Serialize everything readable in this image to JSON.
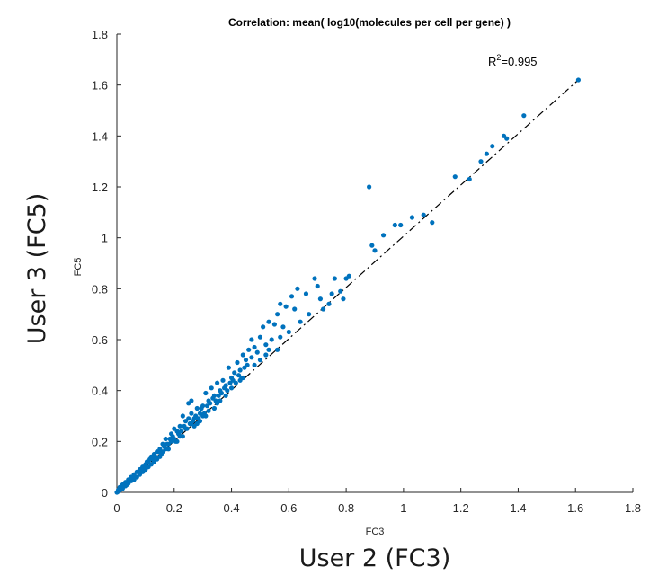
{
  "chart_data": {
    "type": "scatter",
    "title": "Correlation: mean( log10(molecules per cell per gene) )",
    "xlabel": "FC3",
    "ylabel": "FC5",
    "outer_xlabel": "User 2 (FC3)",
    "outer_ylabel": "User 3 (FC5)",
    "xlim": [
      0,
      1.8
    ],
    "ylim": [
      0,
      1.8
    ],
    "xticks": [
      "0",
      "0.2",
      "0.4",
      "0.6",
      "0.8",
      "1",
      "1.2",
      "1.4",
      "1.6",
      "1.8"
    ],
    "yticks": [
      "0",
      "0.2",
      "0.4",
      "0.6",
      "0.8",
      "1",
      "1.2",
      "1.4",
      "1.6",
      "1.8"
    ],
    "annotation": {
      "base": "R",
      "superscript": "2",
      "value": "=0.995"
    },
    "fit_line": {
      "x": [
        0,
        1.61
      ],
      "y": [
        0,
        1.62
      ],
      "style": "dash-dot",
      "color": "#000000"
    },
    "marker_color": "#0072BD",
    "points": [
      [
        1.61,
        1.62
      ],
      [
        1.42,
        1.48
      ],
      [
        1.36,
        1.39
      ],
      [
        1.35,
        1.4
      ],
      [
        1.31,
        1.36
      ],
      [
        1.29,
        1.33
      ],
      [
        1.27,
        1.3
      ],
      [
        1.23,
        1.23
      ],
      [
        1.18,
        1.24
      ],
      [
        1.1,
        1.06
      ],
      [
        1.07,
        1.09
      ],
      [
        1.03,
        1.08
      ],
      [
        0.99,
        1.05
      ],
      [
        0.97,
        1.05
      ],
      [
        0.93,
        1.01
      ],
      [
        0.89,
        0.97
      ],
      [
        0.9,
        0.95
      ],
      [
        0.88,
        1.2
      ],
      [
        0.8,
        0.84
      ],
      [
        0.81,
        0.85
      ],
      [
        0.76,
        0.84
      ],
      [
        0.78,
        0.79
      ],
      [
        0.79,
        0.76
      ],
      [
        0.75,
        0.78
      ],
      [
        0.74,
        0.74
      ],
      [
        0.72,
        0.72
      ],
      [
        0.71,
        0.76
      ],
      [
        0.69,
        0.84
      ],
      [
        0.7,
        0.81
      ],
      [
        0.66,
        0.78
      ],
      [
        0.63,
        0.8
      ],
      [
        0.61,
        0.77
      ],
      [
        0.62,
        0.72
      ],
      [
        0.59,
        0.73
      ],
      [
        0.57,
        0.74
      ],
      [
        0.56,
        0.7
      ],
      [
        0.55,
        0.66
      ],
      [
        0.53,
        0.67
      ],
      [
        0.51,
        0.65
      ],
      [
        0.54,
        0.6
      ],
      [
        0.58,
        0.65
      ],
      [
        0.57,
        0.61
      ],
      [
        0.56,
        0.56
      ],
      [
        0.52,
        0.58
      ],
      [
        0.5,
        0.61
      ],
      [
        0.49,
        0.55
      ],
      [
        0.48,
        0.57
      ],
      [
        0.47,
        0.6
      ],
      [
        0.47,
        0.53
      ],
      [
        0.46,
        0.56
      ],
      [
        0.45,
        0.52
      ],
      [
        0.44,
        0.54
      ],
      [
        0.43,
        0.48
      ],
      [
        0.42,
        0.51
      ],
      [
        0.41,
        0.47
      ],
      [
        0.4,
        0.45
      ],
      [
        0.39,
        0.49
      ],
      [
        0.38,
        0.42
      ],
      [
        0.37,
        0.44
      ],
      [
        0.36,
        0.4
      ],
      [
        0.35,
        0.43
      ],
      [
        0.34,
        0.38
      ],
      [
        0.33,
        0.41
      ],
      [
        0.32,
        0.36
      ],
      [
        0.31,
        0.39
      ],
      [
        0.3,
        0.34
      ],
      [
        0.3,
        0.3
      ],
      [
        0.29,
        0.31
      ],
      [
        0.28,
        0.33
      ],
      [
        0.27,
        0.29
      ],
      [
        0.26,
        0.31
      ],
      [
        0.26,
        0.27
      ],
      [
        0.25,
        0.29
      ],
      [
        0.24,
        0.25
      ],
      [
        0.24,
        0.28
      ],
      [
        0.25,
        0.35
      ],
      [
        0.26,
        0.36
      ],
      [
        0.23,
        0.3
      ],
      [
        0.22,
        0.22
      ],
      [
        0.22,
        0.26
      ],
      [
        0.21,
        0.24
      ],
      [
        0.2,
        0.21
      ],
      [
        0.2,
        0.25
      ],
      [
        0.19,
        0.2
      ],
      [
        0.19,
        0.23
      ],
      [
        0.18,
        0.19
      ],
      [
        0.17,
        0.21
      ],
      [
        0.17,
        0.17
      ],
      [
        0.16,
        0.19
      ],
      [
        0.16,
        0.16
      ],
      [
        0.15,
        0.17
      ],
      [
        0.15,
        0.14
      ],
      [
        0.14,
        0.16
      ],
      [
        0.14,
        0.13
      ],
      [
        0.13,
        0.15
      ],
      [
        0.13,
        0.12
      ],
      [
        0.12,
        0.14
      ],
      [
        0.12,
        0.11
      ],
      [
        0.11,
        0.12
      ],
      [
        0.11,
        0.1
      ],
      [
        0.1,
        0.11
      ],
      [
        0.1,
        0.09
      ],
      [
        0.09,
        0.1
      ],
      [
        0.09,
        0.08
      ],
      [
        0.08,
        0.09
      ],
      [
        0.08,
        0.07
      ],
      [
        0.07,
        0.08
      ],
      [
        0.07,
        0.06
      ],
      [
        0.06,
        0.07
      ],
      [
        0.06,
        0.05
      ],
      [
        0.05,
        0.06
      ],
      [
        0.05,
        0.045
      ],
      [
        0.04,
        0.05
      ],
      [
        0.04,
        0.035
      ],
      [
        0.03,
        0.04
      ],
      [
        0.03,
        0.025
      ],
      [
        0.02,
        0.03
      ],
      [
        0.02,
        0.015
      ],
      [
        0.01,
        0.02
      ],
      [
        0.01,
        0.008
      ],
      [
        0.005,
        0.01
      ],
      [
        0.003,
        0.002
      ],
      [
        0.0,
        0.0
      ],
      [
        0.015,
        0.012
      ],
      [
        0.025,
        0.03
      ],
      [
        0.035,
        0.03
      ],
      [
        0.045,
        0.05
      ],
      [
        0.055,
        0.06
      ],
      [
        0.065,
        0.06
      ],
      [
        0.075,
        0.08
      ],
      [
        0.085,
        0.09
      ],
      [
        0.095,
        0.1
      ],
      [
        0.105,
        0.12
      ],
      [
        0.115,
        0.13
      ],
      [
        0.125,
        0.13
      ],
      [
        0.135,
        0.14
      ],
      [
        0.145,
        0.16
      ],
      [
        0.155,
        0.15
      ],
      [
        0.165,
        0.18
      ],
      [
        0.175,
        0.19
      ],
      [
        0.185,
        0.21
      ],
      [
        0.195,
        0.22
      ],
      [
        0.205,
        0.2
      ],
      [
        0.215,
        0.23
      ],
      [
        0.225,
        0.24
      ],
      [
        0.235,
        0.26
      ],
      [
        0.245,
        0.25
      ],
      [
        0.255,
        0.27
      ],
      [
        0.265,
        0.28
      ],
      [
        0.275,
        0.3
      ],
      [
        0.285,
        0.29
      ],
      [
        0.295,
        0.33
      ],
      [
        0.305,
        0.31
      ],
      [
        0.315,
        0.34
      ],
      [
        0.325,
        0.35
      ],
      [
        0.335,
        0.37
      ],
      [
        0.345,
        0.36
      ],
      [
        0.355,
        0.38
      ],
      [
        0.365,
        0.39
      ],
      [
        0.375,
        0.41
      ],
      [
        0.385,
        0.4
      ],
      [
        0.395,
        0.43
      ],
      [
        0.405,
        0.44
      ],
      [
        0.415,
        0.43
      ],
      [
        0.425,
        0.46
      ],
      [
        0.435,
        0.45
      ],
      [
        0.445,
        0.49
      ],
      [
        0.455,
        0.5
      ],
      [
        0.32,
        0.32
      ],
      [
        0.35,
        0.35
      ],
      [
        0.28,
        0.27
      ],
      [
        0.21,
        0.2
      ],
      [
        0.18,
        0.17
      ],
      [
        0.27,
        0.26
      ],
      [
        0.23,
        0.22
      ],
      [
        0.31,
        0.3
      ],
      [
        0.36,
        0.36
      ],
      [
        0.4,
        0.41
      ],
      [
        0.44,
        0.45
      ],
      [
        0.48,
        0.5
      ],
      [
        0.52,
        0.54
      ],
      [
        0.6,
        0.63
      ],
      [
        0.64,
        0.67
      ],
      [
        0.67,
        0.7
      ],
      [
        0.5,
        0.52
      ],
      [
        0.43,
        0.44
      ],
      [
        0.53,
        0.56
      ],
      [
        0.34,
        0.33
      ],
      [
        0.38,
        0.38
      ],
      [
        0.29,
        0.28
      ]
    ]
  }
}
